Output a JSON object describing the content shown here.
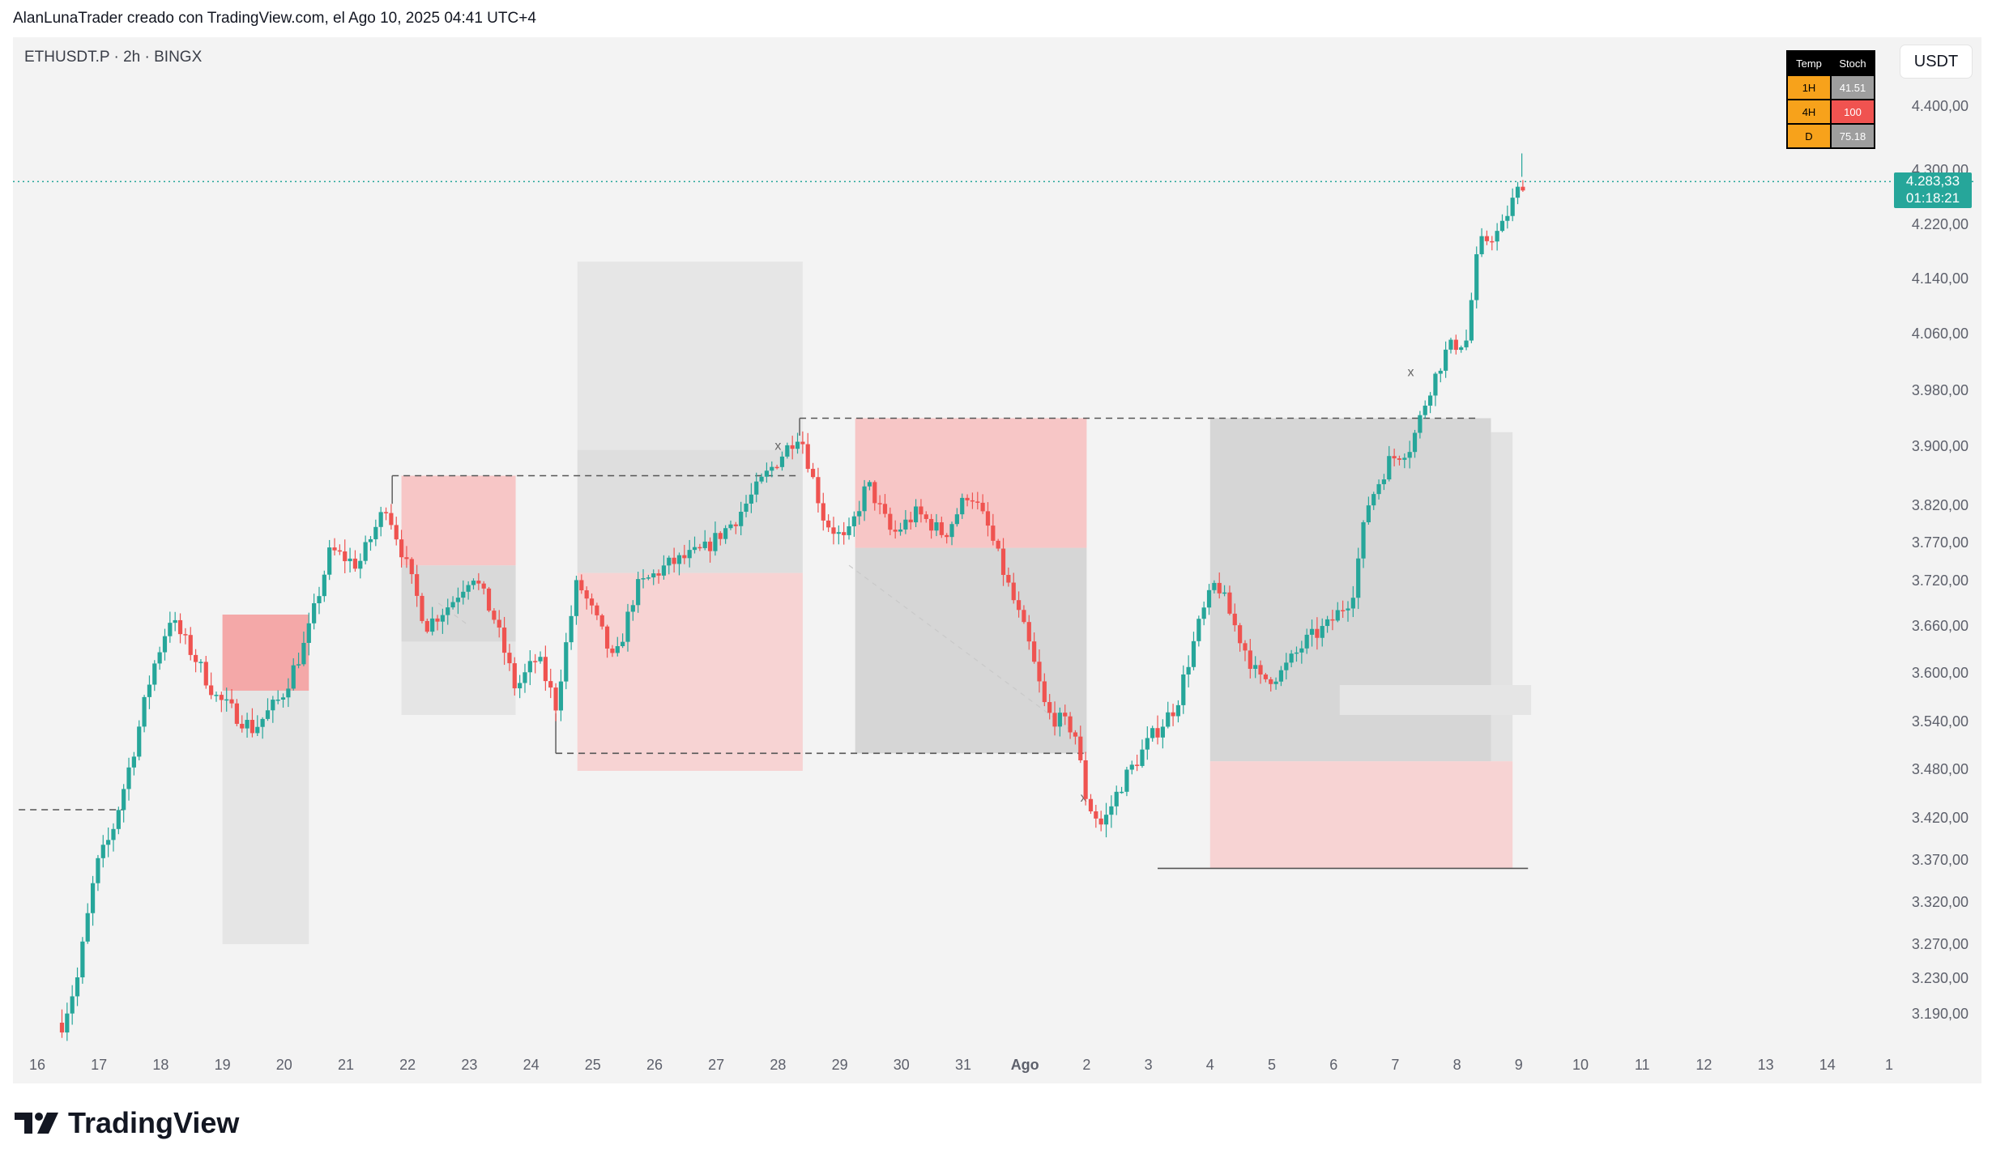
{
  "header": {
    "title": "AlanLunaTrader creado con TradingView.com, el Ago 10, 2025 04:41 UTC+4"
  },
  "chart": {
    "symbol": "ETHUSDT.P · 2h · BINGX",
    "currency": "USDT"
  },
  "stoch_table": {
    "headers": [
      "Temp",
      "Stoch"
    ],
    "rows": [
      {
        "tf": "1H",
        "value": "41.51",
        "color": "#9e9e9e"
      },
      {
        "tf": "4H",
        "value": "100",
        "color": "#f05350"
      },
      {
        "tf": "D",
        "value": "75.18",
        "color": "#9e9e9e"
      }
    ]
  },
  "last_price": {
    "price": "4.283,33",
    "countdown": "01:18:21"
  },
  "footer": {
    "brand": "TradingView"
  },
  "colors": {
    "up": "#26a69a",
    "down": "#ef5350",
    "background": "#f3f3f3"
  },
  "chart_data": {
    "type": "candlestick",
    "title": "ETHUSDT.P · 2h · BINGX",
    "ylim": [
      3160,
      4445
    ],
    "grid": false,
    "y_ticks": [
      {
        "v": 4400,
        "label": "4.400,00"
      },
      {
        "v": 4300,
        "label": "4.300,00"
      },
      {
        "v": 4220,
        "label": "4.220,00"
      },
      {
        "v": 4140,
        "label": "4.140,00"
      },
      {
        "v": 4060,
        "label": "4.060,00"
      },
      {
        "v": 3980,
        "label": "3.980,00"
      },
      {
        "v": 3900,
        "label": "3.900,00"
      },
      {
        "v": 3820,
        "label": "3.820,00"
      },
      {
        "v": 3770,
        "label": "3.770,00"
      },
      {
        "v": 3720,
        "label": "3.720,00"
      },
      {
        "v": 3660,
        "label": "3.660,00"
      },
      {
        "v": 3600,
        "label": "3.600,00"
      },
      {
        "v": 3540,
        "label": "3.540,00"
      },
      {
        "v": 3480,
        "label": "3.480,00"
      },
      {
        "v": 3420,
        "label": "3.420,00"
      },
      {
        "v": 3370,
        "label": "3.370,00"
      },
      {
        "v": 3320,
        "label": "3.320,00"
      },
      {
        "v": 3270,
        "label": "3.270,00"
      },
      {
        "v": 3230,
        "label": "3.230,00"
      },
      {
        "v": 3190,
        "label": "3.190,00"
      }
    ],
    "x_ticks": [
      "16",
      "17",
      "18",
      "19",
      "20",
      "21",
      "22",
      "23",
      "24",
      "25",
      "26",
      "27",
      "28",
      "29",
      "30",
      "31",
      "Ago",
      "2",
      "3",
      "4",
      "5",
      "6",
      "7",
      "8",
      "9",
      "10",
      "11",
      "12",
      "13",
      "14",
      "1"
    ],
    "anchors": [
      [
        16.4,
        3180
      ],
      [
        16.65,
        3230
      ],
      [
        16.95,
        3360
      ],
      [
        17.2,
        3400
      ],
      [
        17.55,
        3500
      ],
      [
        17.85,
        3600
      ],
      [
        18.15,
        3670
      ],
      [
        18.55,
        3620
      ],
      [
        18.9,
        3570
      ],
      [
        19.5,
        3530
      ],
      [
        19.95,
        3570
      ],
      [
        20.35,
        3640
      ],
      [
        20.75,
        3760
      ],
      [
        21.2,
        3740
      ],
      [
        21.65,
        3820
      ],
      [
        21.9,
        3760
      ],
      [
        22.3,
        3660
      ],
      [
        22.7,
        3690
      ],
      [
        23.05,
        3730
      ],
      [
        23.4,
        3670
      ],
      [
        23.75,
        3580
      ],
      [
        24.1,
        3620
      ],
      [
        24.4,
        3560
      ],
      [
        24.75,
        3720
      ],
      [
        25.1,
        3660
      ],
      [
        25.35,
        3610
      ],
      [
        25.7,
        3710
      ],
      [
        26.2,
        3740
      ],
      [
        26.8,
        3760
      ],
      [
        27.3,
        3800
      ],
      [
        27.8,
        3860
      ],
      [
        28.35,
        3920
      ],
      [
        28.75,
        3800
      ],
      [
        29.1,
        3770
      ],
      [
        29.45,
        3850
      ],
      [
        29.85,
        3780
      ],
      [
        30.25,
        3810
      ],
      [
        30.7,
        3780
      ],
      [
        31.1,
        3840
      ],
      [
        31.4,
        3790
      ],
      [
        31.7,
        3720
      ],
      [
        32.05,
        3640
      ],
      [
        32.35,
        3550
      ],
      [
        32.8,
        3530
      ],
      [
        33.0,
        3440
      ],
      [
        33.25,
        3410
      ],
      [
        33.55,
        3460
      ],
      [
        34.05,
        3520
      ],
      [
        34.45,
        3560
      ],
      [
        34.85,
        3670
      ],
      [
        35.1,
        3720
      ],
      [
        35.45,
        3650
      ],
      [
        35.8,
        3590
      ],
      [
        36.15,
        3600
      ],
      [
        36.55,
        3640
      ],
      [
        36.9,
        3660
      ],
      [
        37.3,
        3700
      ],
      [
        37.55,
        3820
      ],
      [
        37.9,
        3880
      ],
      [
        38.25,
        3900
      ],
      [
        38.55,
        3980
      ],
      [
        38.85,
        4040
      ],
      [
        39.15,
        4050
      ],
      [
        39.35,
        4190
      ],
      [
        39.7,
        4210
      ],
      [
        39.95,
        4265
      ],
      [
        40.1,
        4285
      ]
    ],
    "extra_highs": [
      {
        "x": 40.05,
        "v": 4326
      }
    ]
  }
}
